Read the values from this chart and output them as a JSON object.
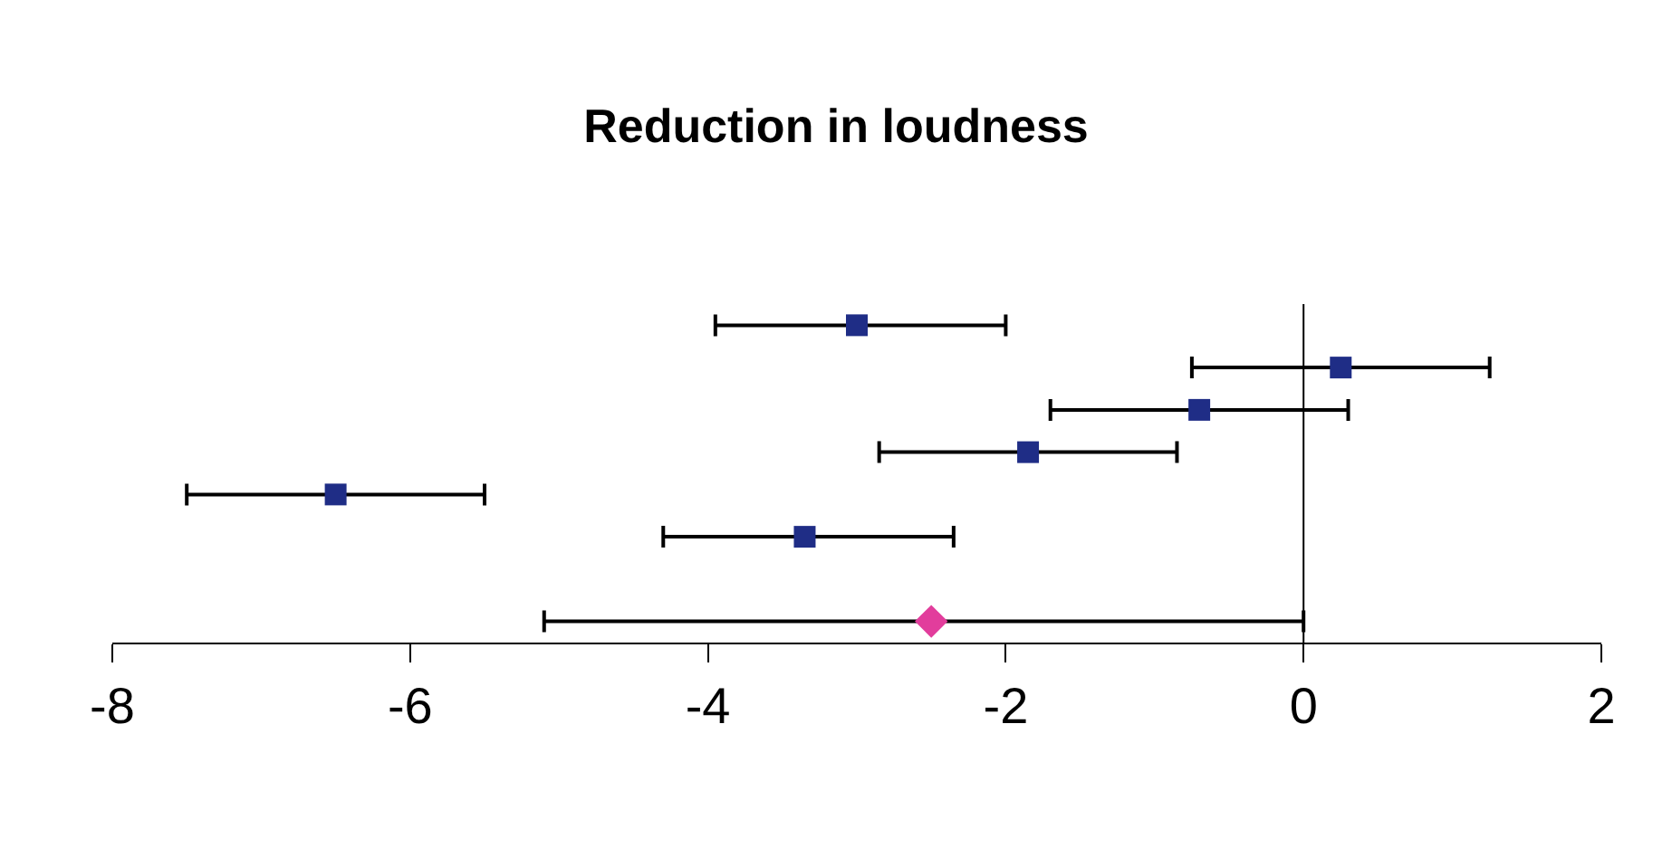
{
  "chart_data": {
    "type": "scatter",
    "orientation": "horizontal",
    "title": "Reduction in loudness",
    "categories": [
      null,
      null,
      null,
      null,
      null,
      null,
      null,
      null
    ],
    "series": [
      {
        "color": "#1f2d86",
        "marker": "square",
        "values": [
          -3.0,
          0.25,
          -0.7,
          -1.85,
          -6.5,
          -3.35,
          null,
          null
        ],
        "errors": [
          [
            -3.95,
            -2.0
          ],
          [
            -0.75,
            1.25
          ],
          [
            -1.7,
            0.3
          ],
          [
            -2.85,
            -0.85
          ],
          [
            -7.5,
            -5.5
          ],
          [
            -4.3,
            -2.35
          ],
          null,
          null
        ]
      },
      {
        "color": "#e23d9c",
        "marker": "diamond",
        "values": [
          null,
          null,
          null,
          null,
          null,
          null,
          null,
          -2.5
        ],
        "errors": [
          null,
          null,
          null,
          null,
          null,
          null,
          null,
          [
            -5.1,
            0.0
          ]
        ]
      }
    ],
    "xlim": [
      -8,
      2
    ],
    "xticks": [
      -8,
      -6,
      -4,
      -2,
      0,
      2
    ],
    "grid": false,
    "ref_lines": [
      {
        "axis": "x",
        "value": 0,
        "color": "#000000"
      }
    ]
  }
}
